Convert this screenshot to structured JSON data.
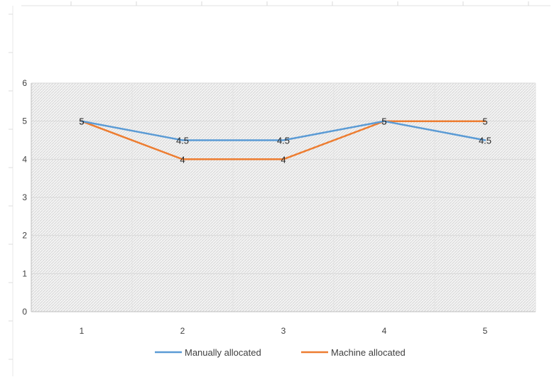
{
  "chart_data": {
    "type": "line",
    "title": "",
    "xlabel": "",
    "ylabel": "",
    "categories": [
      "1",
      "2",
      "3",
      "4",
      "5"
    ],
    "ylim": [
      0,
      6
    ],
    "yticks": [
      "0",
      "1",
      "2",
      "3",
      "4",
      "5",
      "6"
    ],
    "grid": true,
    "legend_position": "bottom",
    "series": [
      {
        "name": "Manually allocated",
        "values": [
          5,
          4.5,
          4.5,
          5,
          4.5
        ],
        "labels": [
          "5",
          "4.5",
          "4.5",
          "5",
          "4.5"
        ],
        "color": "#5B9BD5"
      },
      {
        "name": "Machine allocated",
        "values": [
          5,
          4,
          4,
          5,
          5
        ],
        "labels": [
          "5",
          "4",
          "4",
          "5",
          "5"
        ],
        "color": "#ED7D31"
      }
    ]
  }
}
